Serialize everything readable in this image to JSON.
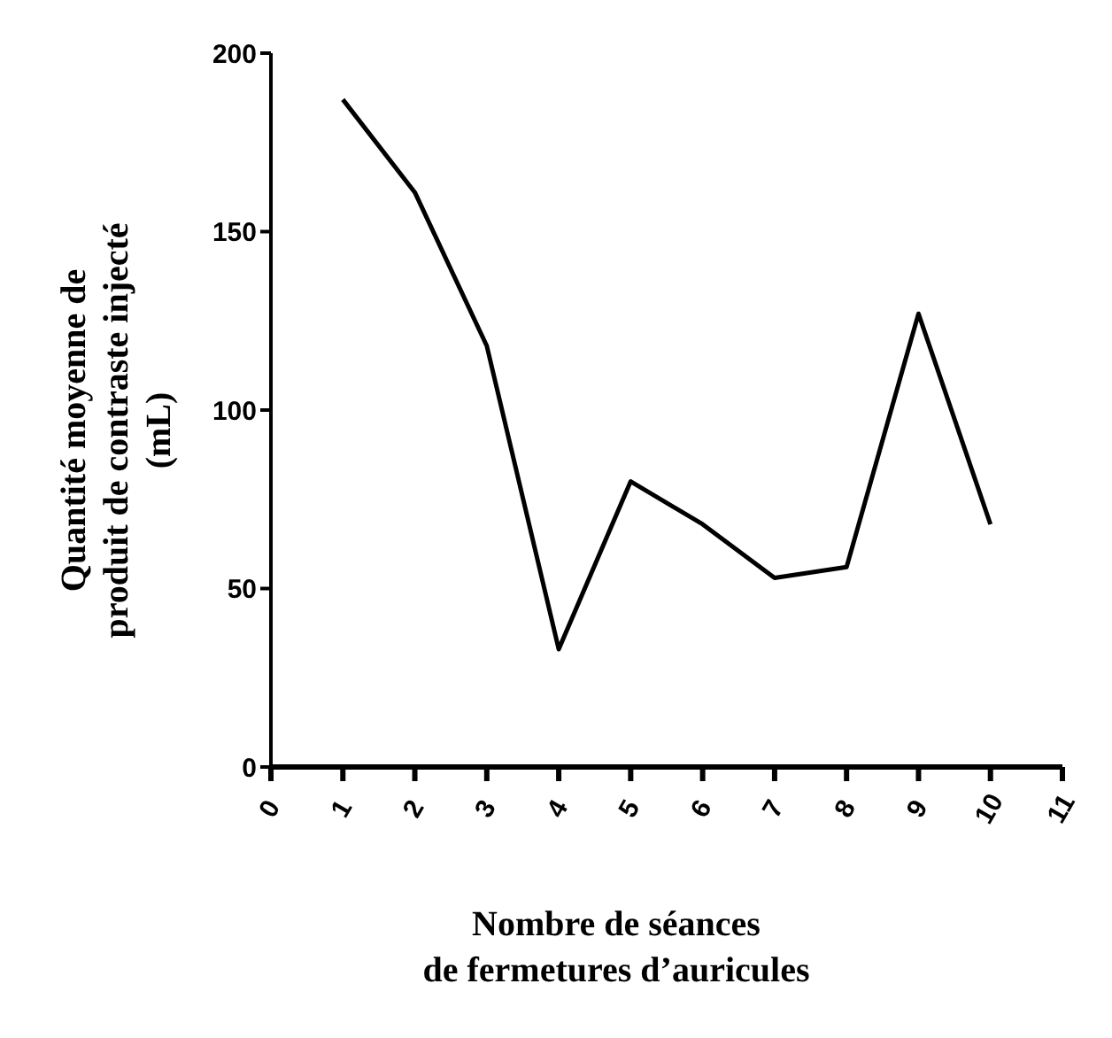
{
  "chart_data": {
    "type": "line",
    "xlabel": "Nombre de séances\nde fermetures d’auricules",
    "ylabel": "Quantité moyenne de\nproduit de contraste injecté\n(mL)",
    "x": [
      1,
      2,
      3,
      4,
      5,
      6,
      7,
      8,
      9,
      10
    ],
    "series": [
      {
        "color": "#000000",
        "values": [
          187,
          161,
          118,
          33,
          80,
          68,
          53,
          56,
          127,
          68
        ]
      }
    ],
    "xlim": [
      0,
      11
    ],
    "xticks": [
      0,
      1,
      2,
      3,
      4,
      5,
      6,
      7,
      8,
      9,
      10,
      11
    ],
    "ylim": [
      0,
      200
    ],
    "yticks": [
      0,
      50,
      100,
      150,
      200
    ],
    "grid": false,
    "legend": false,
    "marker": "none",
    "line_style": "solid"
  }
}
